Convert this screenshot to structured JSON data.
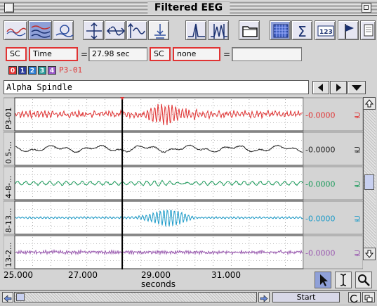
{
  "window": {
    "title": "Filtered EEG"
  },
  "toolbar": {
    "buttons": [
      {
        "name": "single-trace-icon"
      },
      {
        "name": "stacked-traces-icon"
      },
      {
        "name": "loop-trace-icon"
      },
      {
        "name": "expand-vertical-icon"
      },
      {
        "name": "expand-horizontal-icon"
      },
      {
        "name": "baseline-icon"
      },
      {
        "name": "cursor-drag-icon"
      },
      {
        "name": "spike-icon"
      },
      {
        "name": "peak-icon"
      },
      {
        "name": "folder-icon"
      },
      {
        "name": "grid-icon"
      },
      {
        "name": "sum-icon"
      },
      {
        "name": "numbers-icon"
      },
      {
        "name": "flag-icon"
      },
      {
        "name": "page-icon"
      }
    ]
  },
  "controls": {
    "source1": "SC",
    "mode": "Time",
    "eq1": "=",
    "time_value": "27.98 sec",
    "source2": "SC",
    "ref": "none",
    "eq2": "=",
    "result": ""
  },
  "channels": {
    "selectors": [
      {
        "label": "0",
        "color": "#e03434"
      },
      {
        "label": "1",
        "color": "#2a3a9a"
      },
      {
        "label": "2",
        "color": "#2a7ad0"
      },
      {
        "label": "3",
        "color": "#2a9a9a"
      },
      {
        "label": "4",
        "color": "#9a5ac8"
      }
    ],
    "current": "P3-01"
  },
  "annotation": "Alpha Spindle",
  "traces": [
    {
      "label": "P3-01",
      "value": "-0.0000",
      "color": "#e03434"
    },
    {
      "label": "0.5-...",
      "value": "-0.0000",
      "color": "#222222"
    },
    {
      "label": "4-8-...",
      "value": "-0.0000",
      "color": "#1a9a5a"
    },
    {
      "label": "8-13...",
      "value": "-0.0000",
      "color": "#1a9ac8"
    },
    {
      "label": "13-2...",
      "value": "-0.0000",
      "color": "#9a5ab0"
    }
  ],
  "xaxis": {
    "ticks": [
      "25.000",
      "27.000",
      "29.000",
      "31.000"
    ],
    "label": "seconds"
  },
  "cursor_time": "27.98",
  "bottom": {
    "start_label": "Start"
  }
}
